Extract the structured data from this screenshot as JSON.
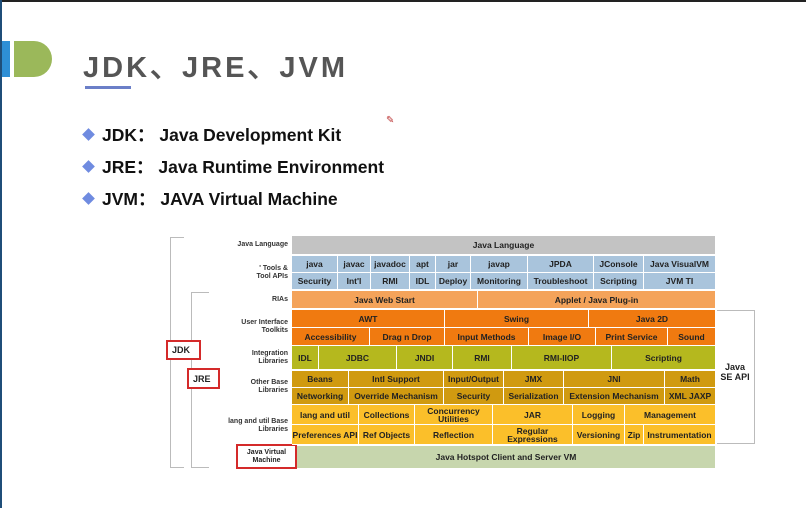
{
  "slide": {
    "title": "JDK、JRE、JVM",
    "bullets": [
      "JDK： Java Development Kit",
      "JRE： Java Runtime Environment",
      "JVM： JAVA Virtual Machine"
    ]
  },
  "diagram": {
    "row_labels": [
      "Java Language",
      "' Tools & Tool APIs",
      "RIAs",
      "User Interface Toolkits",
      "Integration Libraries",
      "Other Base Libraries",
      "lang and util Base Libraries"
    ],
    "jvm_label": "Java Virtual Machine",
    "jdk_label": "JDK",
    "jre_label": "JRE",
    "se_api_label": "Java SE API",
    "rows": [
      [
        "Java Language"
      ],
      [
        "java",
        "javac",
        "javadoc",
        "apt",
        "jar",
        "javap",
        "JPDA",
        "JConsole",
        "Java VisualVM"
      ],
      [
        "Security",
        "Int'l",
        "RMI",
        "IDL",
        "Deploy",
        "Monitoring",
        "Troubleshoot",
        "Scripting",
        "JVM TI"
      ],
      [
        "Java Web Start",
        "Applet / Java Plug-in"
      ],
      [
        "AWT",
        "Swing",
        "Java 2D"
      ],
      [
        "Accessibility",
        "Drag n Drop",
        "Input Methods",
        "Image I/O",
        "Print Service",
        "Sound"
      ],
      [
        "IDL",
        "JDBC",
        "JNDI",
        "RMI",
        "RMI-IIOP",
        "Scripting"
      ],
      [
        "Beans",
        "Intl Support",
        "Input/Output",
        "JMX",
        "JNI",
        "Math"
      ],
      [
        "Networking",
        "Override Mechanism",
        "Security",
        "Serialization",
        "Extension Mechanism",
        "XML JAXP"
      ],
      [
        "lang and util",
        "Collections",
        "Concurrency Utilities",
        "JAR",
        "Logging",
        "Management"
      ],
      [
        "Preferences API",
        "Ref Objects",
        "Reflection",
        "Regular Expressions",
        "Versioning",
        "Zip",
        "Instrumentation"
      ],
      [
        "Java Hotspot Client and Server VM"
      ]
    ],
    "colors": {
      "language": "#c3c3c3",
      "tools": "#a9c4dc",
      "rias": "#f4a35a",
      "ui": "#f07a10",
      "integration": "#b5b81e",
      "other": "#d09a10",
      "lang": "#fbbf2a",
      "jvm": "#c7d6ad",
      "highlight": "#d42a2a"
    }
  }
}
